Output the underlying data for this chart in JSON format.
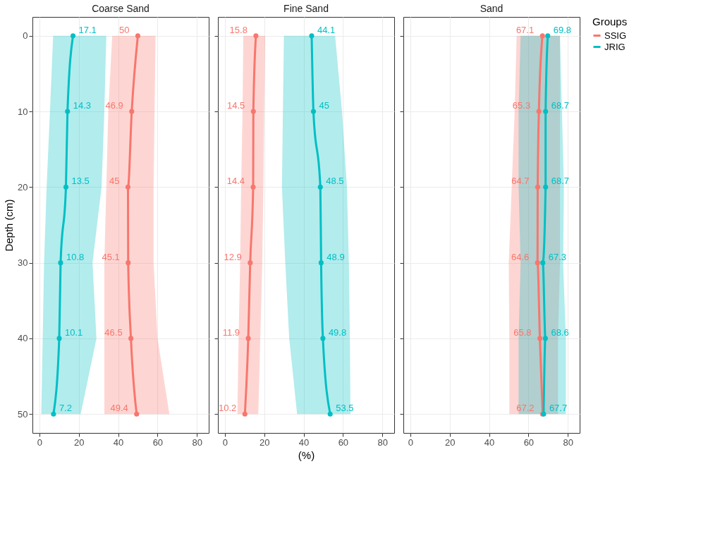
{
  "chart_data": [
    {
      "type": "line",
      "title": "Coarse Sand",
      "ylabel": "Depth (cm)",
      "orientation": "horizontal",
      "x": [
        0,
        10,
        20,
        30,
        40,
        50
      ],
      "xlim": [
        -3.5,
        86
      ],
      "xticks": [
        0,
        20,
        40,
        60,
        80
      ],
      "ylim": [
        52.5,
        -2.5
      ],
      "yticks": [
        0,
        10,
        20,
        30,
        40,
        50
      ],
      "grid": true,
      "marker": "circle",
      "line_style": "solid",
      "data_labels": true,
      "legend": false,
      "series": [
        {
          "color": "#f8766d",
          "values": [
            50,
            46.9,
            45,
            45.1,
            46.5,
            49.4
          ],
          "lower": [
            37,
            35,
            34,
            33,
            33,
            33
          ],
          "upper": [
            59,
            58.5,
            58,
            58,
            60,
            66
          ]
        },
        {
          "color": "#00bfc4",
          "values": [
            17.1,
            14.3,
            13.5,
            10.8,
            10.1,
            7.2
          ],
          "lower": [
            7,
            5.4,
            3.7,
            2.4,
            1.7,
            1
          ],
          "upper": [
            34,
            33,
            31.6,
            27,
            29,
            21
          ]
        }
      ]
    },
    {
      "type": "line",
      "title": "Fine Sand",
      "xlabel": "(%)",
      "orientation": "horizontal",
      "x": [
        0,
        10,
        20,
        30,
        40,
        50
      ],
      "xlim": [
        -3.5,
        86
      ],
      "xticks": [
        0,
        20,
        40,
        60,
        80
      ],
      "ylim": [
        52.5,
        -2.5
      ],
      "yticks": [
        0,
        10,
        20,
        30,
        40,
        50
      ],
      "tick_labels": "x",
      "grid": true,
      "marker": "circle",
      "line_style": "solid",
      "data_labels": true,
      "legend": false,
      "series": [
        {
          "color": "#f8766d",
          "values": [
            15.8,
            14.5,
            14.4,
            12.9,
            11.9,
            10.2
          ],
          "lower": [
            9.4,
            9,
            8.3,
            7.8,
            7,
            6.4
          ],
          "upper": [
            20.5,
            20,
            19.6,
            19,
            18,
            17
          ]
        },
        {
          "color": "#00bfc4",
          "values": [
            44.1,
            45,
            48.5,
            48.9,
            49.8,
            53.5
          ],
          "lower": [
            30,
            29.5,
            29,
            30.7,
            32.7,
            36.7
          ],
          "upper": [
            56,
            59.5,
            62,
            63,
            63.5,
            63.8
          ]
        }
      ]
    },
    {
      "type": "line",
      "title": "Sand",
      "legend_title": "Groups",
      "orientation": "horizontal",
      "x": [
        0,
        10,
        20,
        30,
        40,
        50
      ],
      "xlim": [
        -3.5,
        86
      ],
      "xticks": [
        0,
        20,
        40,
        60,
        80
      ],
      "ylim": [
        52.5,
        -2.5
      ],
      "yticks": [
        0,
        10,
        20,
        30,
        40,
        50
      ],
      "tick_labels": "x",
      "grid": true,
      "marker": "circle",
      "line_style": "solid",
      "data_labels": true,
      "legend": "right",
      "series": [
        {
          "name": "SSIG",
          "color": "#f8766d",
          "values": [
            67.1,
            65.3,
            64.7,
            64.6,
            65.8,
            67.2
          ],
          "lower": [
            54,
            53,
            51.5,
            50,
            50.3,
            50.3
          ],
          "upper": [
            76,
            76,
            76,
            76,
            75,
            75
          ]
        },
        {
          "name": "JRIG",
          "color": "#00bfc4",
          "values": [
            69.8,
            68.7,
            68.7,
            67.3,
            68.6,
            67.7
          ],
          "lower": [
            56,
            55,
            55,
            56,
            55,
            55
          ],
          "upper": [
            76,
            77,
            78,
            77.6,
            79,
            79
          ]
        }
      ]
    }
  ]
}
